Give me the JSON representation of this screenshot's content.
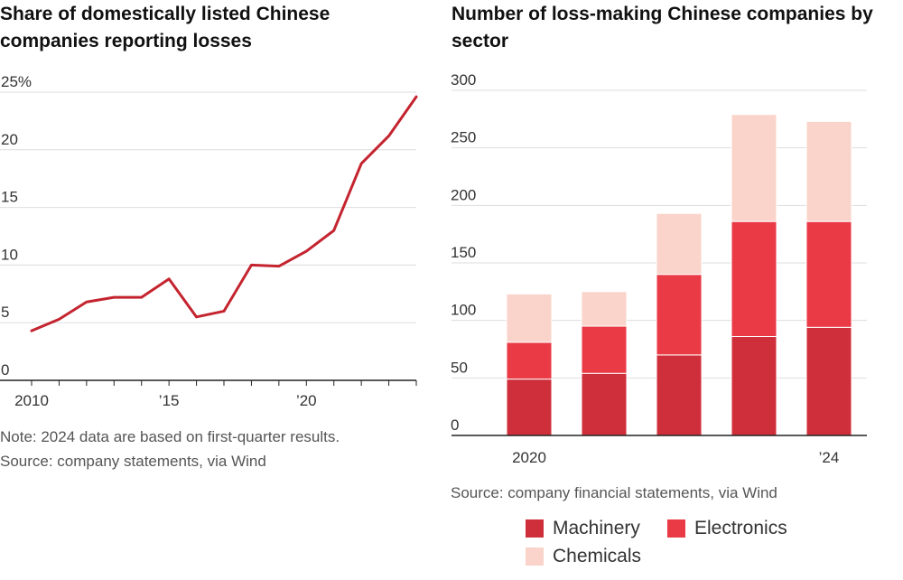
{
  "left_title": "Share of domestically listed Chinese companies reporting losses",
  "right_title": "Number of loss-making Chinese companies by sector",
  "left_note": "Note: 2024 data are based on first-quarter results.",
  "left_source": "Source: company statements, via Wind",
  "right_source": "Source: company financial statements, via Wind",
  "colors": {
    "line": "#c4242f",
    "machinery": "#cf2f3b",
    "electronics": "#ea3a46",
    "chemicals": "#fad4ca",
    "grid": "#dddddd",
    "axis": "#222222"
  },
  "chart_data": [
    {
      "type": "line",
      "title": "Share of domestically listed Chinese companies reporting losses",
      "x": [
        2010,
        2011,
        2012,
        2013,
        2014,
        2015,
        2016,
        2017,
        2018,
        2019,
        2020,
        2021,
        2022,
        2023,
        2024
      ],
      "series": [
        {
          "values": [
            4.3,
            5.3,
            6.8,
            7.2,
            7.2,
            8.8,
            5.5,
            6.0,
            10.0,
            9.9,
            11.2,
            13.0,
            18.8,
            21.2,
            24.6
          ]
        }
      ],
      "xlim": [
        2010,
        2024
      ],
      "ylim": [
        0,
        25
      ],
      "x_ticks": [
        {
          "value": 2010,
          "label": "2010"
        },
        {
          "value": 2015,
          "label": "’15"
        },
        {
          "value": 2020,
          "label": "’20"
        }
      ],
      "y_ticks": [
        {
          "value": 25,
          "label": "25%"
        },
        {
          "value": 20,
          "label": "20"
        },
        {
          "value": 15,
          "label": "15"
        },
        {
          "value": 10,
          "label": "10"
        },
        {
          "value": 5,
          "label": "5"
        },
        {
          "value": 0,
          "label": "0"
        }
      ],
      "grid": true
    },
    {
      "type": "bar",
      "stacked": true,
      "title": "Number of loss-making Chinese companies by sector",
      "categories": [
        "2020",
        "2021",
        "2022",
        "2023",
        "2024"
      ],
      "category_labels": [
        "2020",
        "",
        "",
        "",
        "’24"
      ],
      "series": [
        {
          "name": "Machinery",
          "values": [
            49,
            54,
            70,
            86,
            94
          ]
        },
        {
          "name": "Electronics",
          "values": [
            32,
            41,
            70,
            100,
            92
          ]
        },
        {
          "name": "Chemicals",
          "values": [
            42,
            30,
            53,
            93,
            87
          ]
        }
      ],
      "ylim": [
        0,
        300
      ],
      "y_ticks": [
        {
          "value": 300,
          "label": "300"
        },
        {
          "value": 250,
          "label": "250"
        },
        {
          "value": 200,
          "label": "200"
        },
        {
          "value": 150,
          "label": "150"
        },
        {
          "value": 100,
          "label": "100"
        },
        {
          "value": 50,
          "label": "50"
        },
        {
          "value": 0,
          "label": "0"
        }
      ],
      "grid": true,
      "legend": "bottom"
    }
  ]
}
